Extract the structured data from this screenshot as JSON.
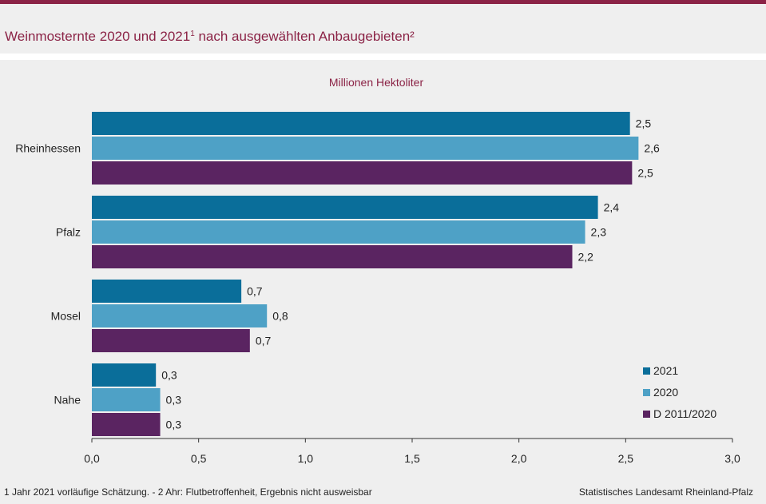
{
  "header": {
    "title_main": "Weinmosternte 2020 und 2021",
    "title_sup1": "1",
    "title_rest": " nach ausgewählten Anbaugebieten²"
  },
  "footer": {
    "note": "1 Jahr 2021 vorläufige  Schätzung. - 2 Ahr: Flutbetroffenheit,  Ergebnis  nicht ausweisbar",
    "source": "Statistisches Landesamt Rheinland-Pfalz"
  },
  "chart_data": {
    "type": "bar",
    "orientation": "horizontal",
    "subtitle": "Millionen Hektoliter",
    "categories": [
      "Rheinhessen",
      "Pfalz",
      "Mosel",
      "Nahe"
    ],
    "series": [
      {
        "name": "2021",
        "color": "#0a6e9a",
        "values": [
          2.52,
          2.37,
          0.7,
          0.3
        ],
        "labels": [
          "2,5",
          "2,4",
          "0,7",
          "0,3"
        ]
      },
      {
        "name": "2020",
        "color": "#4ea1c6",
        "values": [
          2.56,
          2.31,
          0.82,
          0.32
        ],
        "labels": [
          "2,6",
          "2,3",
          "0,8",
          "0,3"
        ]
      },
      {
        "name": "D 2011/2020",
        "color": "#5a2461",
        "values": [
          2.53,
          2.25,
          0.74,
          0.32
        ],
        "labels": [
          "2,5",
          "2,2",
          "0,7",
          "0,3"
        ]
      }
    ],
    "xlim": [
      0,
      3.0
    ],
    "xticks": [
      0,
      0.5,
      1.0,
      1.5,
      2.0,
      2.5,
      3.0
    ],
    "xtick_labels": [
      "0,0",
      "0,5",
      "1,0",
      "1,5",
      "2,0",
      "2,5",
      "3,0"
    ],
    "legend_position": "bottom-right",
    "grid": false
  }
}
